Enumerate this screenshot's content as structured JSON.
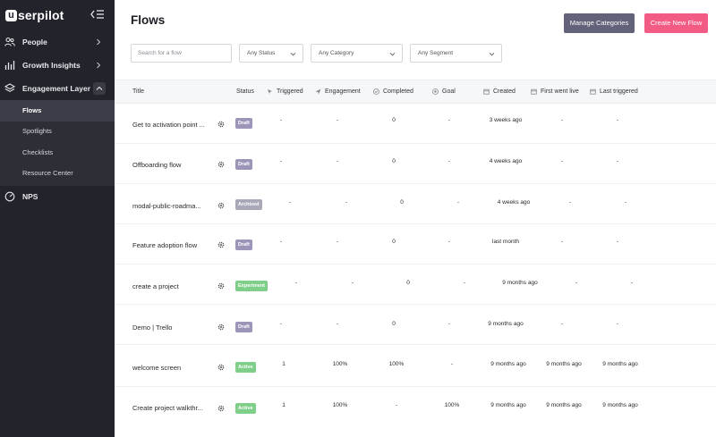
{
  "sidebar": {
    "brand_letter": "u",
    "brand_rest": "serpilot",
    "items": [
      {
        "label": "People",
        "icon": "people-icon"
      },
      {
        "label": "Growth Insights",
        "icon": "bar-chart-icon"
      },
      {
        "label": "Engagement Layer",
        "icon": "layers-icon"
      },
      {
        "label": "NPS",
        "icon": "nps-icon"
      }
    ],
    "subitems": [
      {
        "label": "Flows"
      },
      {
        "label": "Spotlights"
      },
      {
        "label": "Checklists"
      },
      {
        "label": "Resource Center"
      }
    ]
  },
  "header": {
    "title": "Flows",
    "manage_label": "Manage Categories",
    "create_label": "Create New Flow"
  },
  "filters": {
    "search_placeholder": "Search for a flow",
    "status": "Any Status",
    "category": "Any Category",
    "segment": "Any Segment"
  },
  "table": {
    "headers": {
      "title": "Title",
      "status": "Status",
      "triggered": "Triggered",
      "engagement": "Engagement",
      "completed": "Completed",
      "goal": "Goal",
      "created": "Created",
      "first_live": "First went live",
      "last_triggered": "Last triggered"
    },
    "rows": [
      {
        "title": "Get to activation point ...",
        "status": "Draft",
        "triggered": "-",
        "engagement": "-",
        "completed": "0",
        "goal": "-",
        "created": "3 weeks ago",
        "first_live": "-",
        "last_triggered": "-"
      },
      {
        "title": "Offboarding flow",
        "status": "Draft",
        "triggered": "-",
        "engagement": "-",
        "completed": "0",
        "goal": "-",
        "created": "4 weeks ago",
        "first_live": "-",
        "last_triggered": "-"
      },
      {
        "title": "modal-public-roadma...",
        "status": "Archived",
        "triggered": "-",
        "engagement": "-",
        "completed": "0",
        "goal": "-",
        "created": "4 weeks ago",
        "first_live": "-",
        "last_triggered": "-"
      },
      {
        "title": "Feature adoption flow",
        "status": "Draft",
        "triggered": "-",
        "engagement": "-",
        "completed": "0",
        "goal": "-",
        "created": "last month",
        "first_live": "-",
        "last_triggered": "-"
      },
      {
        "title": "create a project",
        "status": "Experiment",
        "triggered": "-",
        "engagement": "-",
        "completed": "0",
        "goal": "-",
        "created": "9 months ago",
        "first_live": "-",
        "last_triggered": "-"
      },
      {
        "title": "Demo | Trello",
        "status": "Draft",
        "triggered": "-",
        "engagement": "-",
        "completed": "0",
        "goal": "-",
        "created": "9 months ago",
        "first_live": "-",
        "last_triggered": "-"
      },
      {
        "title": "welcome screen",
        "status": "Active",
        "triggered": "1",
        "engagement": "100%",
        "completed": "100%",
        "goal": "-",
        "created": "9 months ago",
        "first_live": "9 months ago",
        "last_triggered": "9 months ago"
      },
      {
        "title": "Create project walkthr...",
        "status": "Active",
        "triggered": "1",
        "engagement": "100%",
        "completed": "-",
        "goal": "100%",
        "created": "9 months ago",
        "first_live": "9 months ago",
        "last_triggered": "9 months ago"
      }
    ]
  },
  "colors": {
    "sidebar_bg": "#22232b",
    "primary_button": "#f25c84",
    "secondary_button": "#62627a",
    "badge_draft": "#9c95b8",
    "badge_active": "#7fcf8a"
  }
}
